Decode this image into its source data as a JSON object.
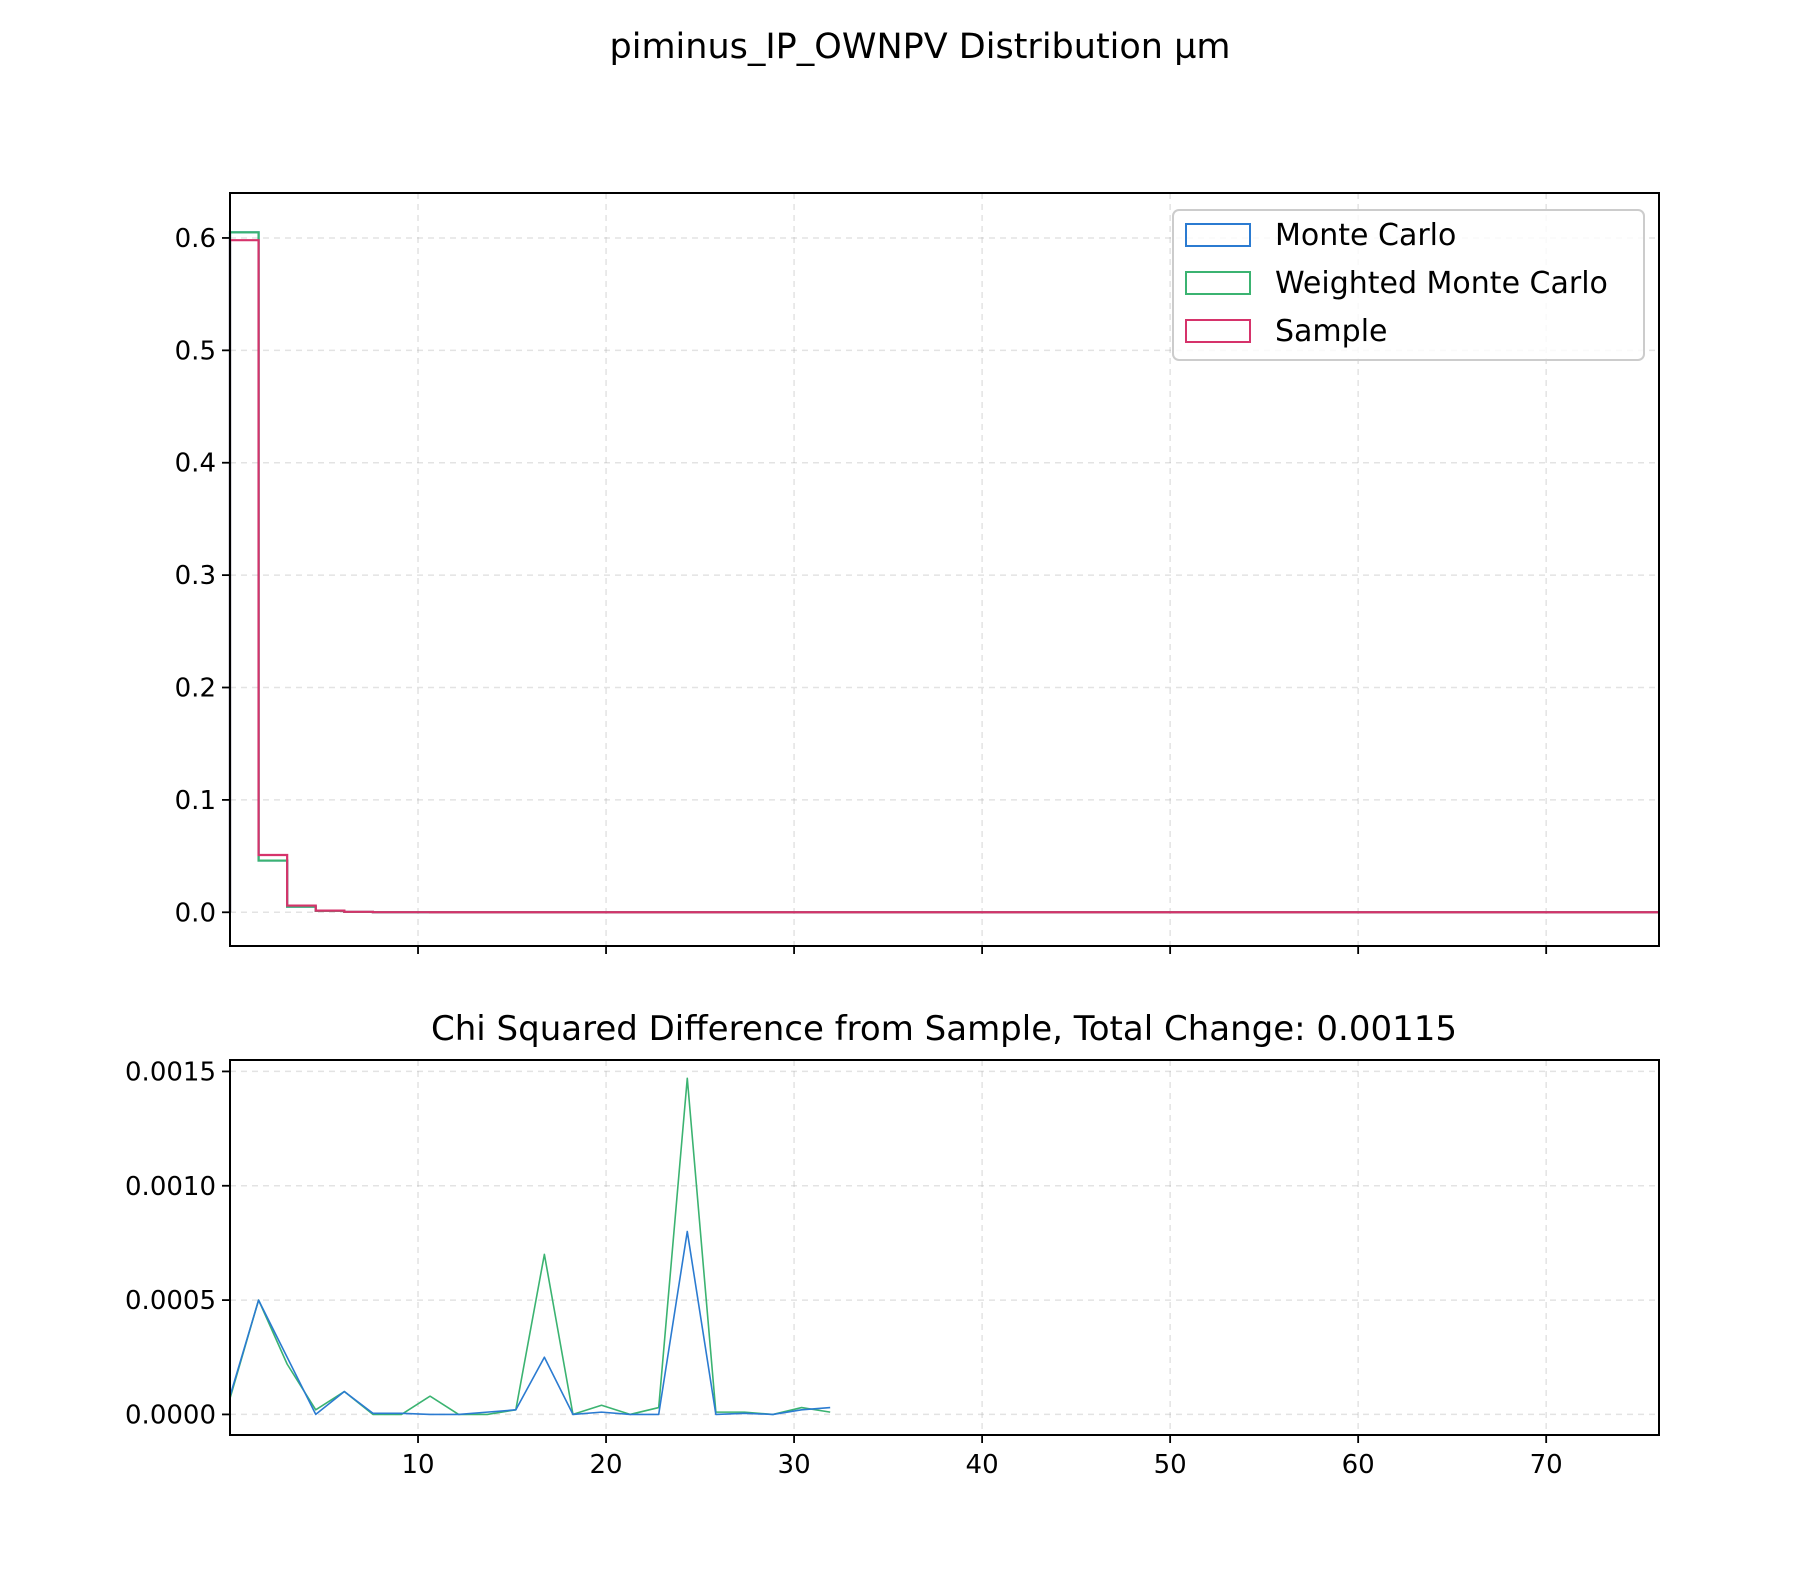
{
  "chart_data": [
    {
      "type": "line",
      "subtype": "step-histogram",
      "title": "piminus_IP_OWNPV Distribution µm",
      "xlabel": "",
      "ylabel": "",
      "xlim": [
        0,
        76
      ],
      "ylim": [
        -0.03,
        0.64
      ],
      "y_ticks": [
        "0.0",
        "0.1",
        "0.2",
        "0.3",
        "0.4",
        "0.5",
        "0.6"
      ],
      "x_ticks": [
        10,
        20,
        30,
        40,
        50,
        60,
        70
      ],
      "x_ticklabels_visible": false,
      "grid": true,
      "legend_position": "upper-right",
      "bin_edges": [
        0,
        1.52,
        3.04,
        4.56,
        6.08,
        7.6,
        9.12,
        10.64,
        12.16,
        13.68,
        15.2,
        16.72,
        18.24,
        19.76,
        21.28,
        22.8,
        24.32,
        25.84,
        27.36,
        28.88,
        30.4,
        31.92,
        33.44,
        34.96,
        36.48,
        38.0,
        39.52,
        41.04,
        42.56,
        44.08,
        45.6,
        47.12,
        48.64,
        50.16,
        51.68,
        53.2,
        54.72,
        56.24,
        57.76,
        59.28,
        60.8,
        62.32,
        63.84,
        65.36,
        66.88,
        68.4,
        69.92,
        71.44,
        72.96,
        74.48,
        76.0
      ],
      "series": [
        {
          "name": "Monte Carlo",
          "color": "#2b7bd1",
          "values": [
            0.605,
            0.046,
            0.005,
            0.0012,
            0.0003,
            0.0001,
            0.0001,
            5e-05,
            3e-05,
            2e-05,
            1e-05,
            1e-05,
            1e-05,
            0,
            0,
            0,
            0,
            0,
            0,
            0,
            0,
            0,
            0,
            0,
            0,
            0,
            0,
            0,
            0,
            0,
            0,
            0,
            0,
            0,
            0,
            0,
            0,
            0,
            0,
            0,
            0,
            0,
            0,
            0,
            0,
            0,
            0,
            0,
            0,
            0
          ]
        },
        {
          "name": "Weighted Monte Carlo",
          "color": "#3bb371",
          "values": [
            0.605,
            0.046,
            0.005,
            0.0012,
            0.0003,
            0.0001,
            0.0001,
            5e-05,
            3e-05,
            2e-05,
            1e-05,
            1e-05,
            1e-05,
            0,
            0,
            0,
            0,
            0,
            0,
            0,
            0,
            0,
            0,
            0,
            0,
            0,
            0,
            0,
            0,
            0,
            0,
            0,
            0,
            0,
            0,
            0,
            0,
            0,
            0,
            0,
            0,
            0,
            0,
            0,
            0,
            0,
            0,
            0,
            0,
            0
          ]
        },
        {
          "name": "Sample",
          "color": "#d6336b",
          "values": [
            0.598,
            0.051,
            0.006,
            0.0015,
            0.0004,
            0.0001,
            0.0001,
            5e-05,
            3e-05,
            2e-05,
            1e-05,
            1e-05,
            1e-05,
            0,
            0,
            0,
            0,
            0,
            0,
            0,
            0,
            0,
            0,
            0,
            0,
            0,
            0,
            0,
            0,
            0,
            0,
            0,
            0,
            0,
            0,
            0,
            0,
            0,
            0,
            0,
            0,
            0,
            0,
            0,
            0,
            0,
            0,
            0,
            0,
            0
          ]
        }
      ]
    },
    {
      "type": "line",
      "title": "Chi Squared Difference from Sample, Total Change: 0.00115",
      "xlabel": "",
      "ylabel": "",
      "xlim": [
        0,
        76
      ],
      "ylim": [
        -9e-05,
        0.00155
      ],
      "y_ticks": [
        "0.0000",
        "0.0005",
        "0.0010",
        "0.0015"
      ],
      "x_ticks": [
        10,
        20,
        30,
        40,
        50,
        60,
        70
      ],
      "x_ticklabels": [
        "10",
        "20",
        "30",
        "40",
        "50",
        "60",
        "70"
      ],
      "grid": true,
      "x": [
        0.0,
        1.52,
        3.04,
        4.56,
        6.08,
        7.6,
        9.12,
        10.64,
        12.16,
        13.68,
        15.2,
        16.72,
        18.24,
        19.76,
        21.28,
        22.8,
        24.32,
        25.84,
        27.36,
        28.88,
        30.4,
        31.92
      ],
      "series": [
        {
          "name": "Monte Carlo",
          "color": "#2b7bd1",
          "values": [
            8e-05,
            0.0005,
            0.00025,
            0.0,
            0.0001,
            5e-06,
            5e-06,
            0.0,
            0.0,
            1e-05,
            2e-05,
            0.00025,
            0.0,
            1e-05,
            0.0,
            0.0,
            0.0008,
            0.0,
            5e-06,
            0.0,
            2e-05,
            3e-05
          ]
        },
        {
          "name": "Weighted Monte Carlo",
          "color": "#3bb371",
          "values": [
            7e-05,
            0.0005,
            0.00022,
            2e-05,
            0.0001,
            0.0,
            0.0,
            8e-05,
            0.0,
            0.0,
            2e-05,
            0.0007,
            0.0,
            4e-05,
            0.0,
            3e-05,
            0.00147,
            1e-05,
            1e-05,
            0.0,
            3e-05,
            1e-05
          ]
        }
      ]
    }
  ]
}
